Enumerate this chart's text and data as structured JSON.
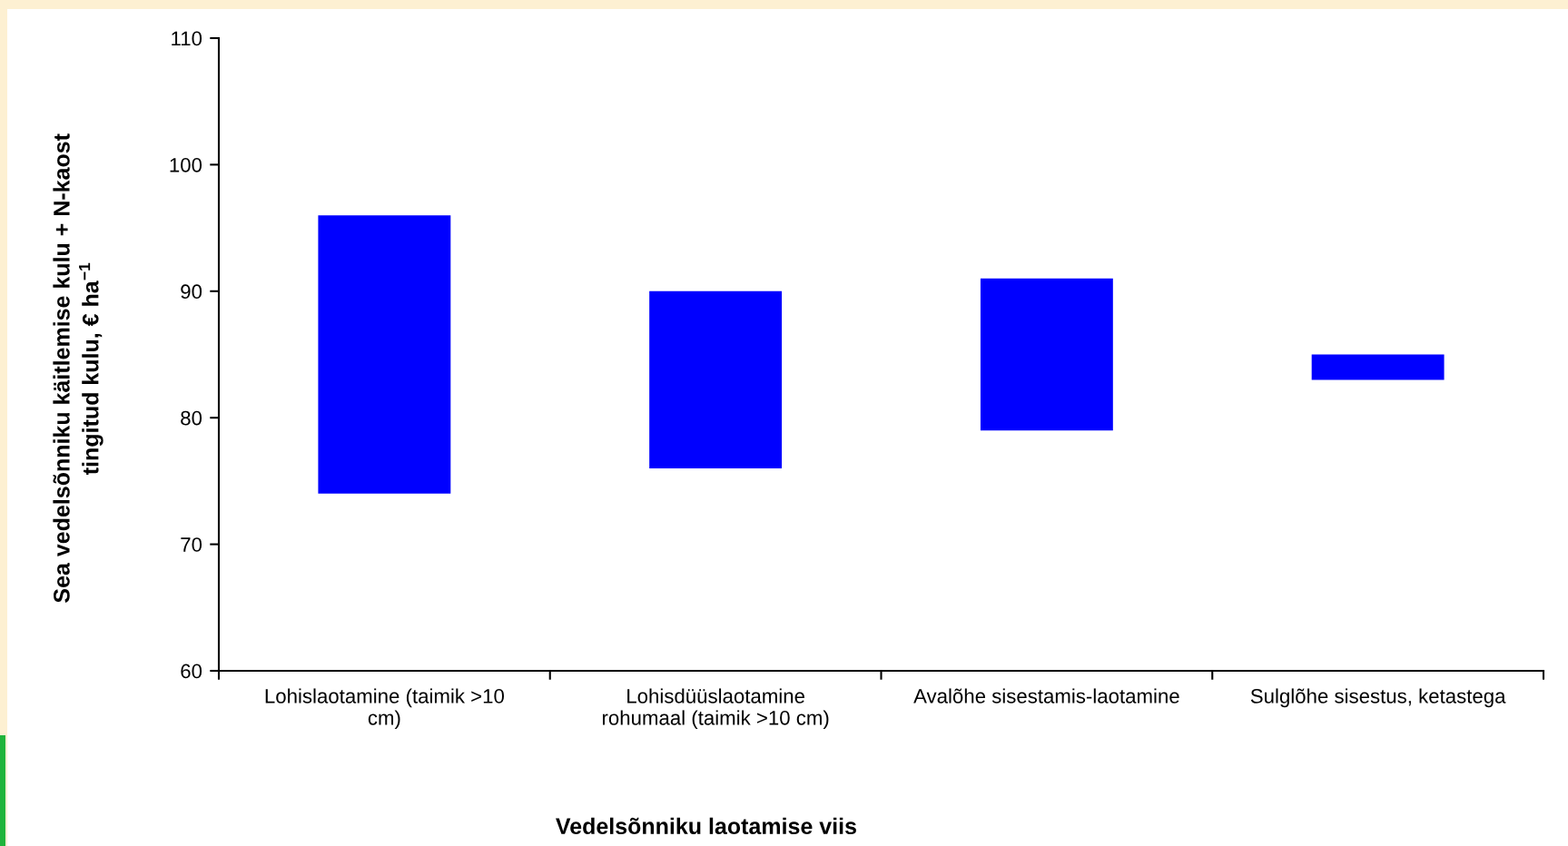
{
  "chart_data": {
    "type": "bar",
    "xlabel": "Vedelsõnniku laotamise viis",
    "ylabel": "Sea vedelsõnniku käitlemise kulu + N-kaost\ntingitud kulu, € ha$^{−1}$",
    "categories": [
      "Lohislaotamine (taimik >10\ncm)",
      "Lohisdüüslaotamine\nrohumaal (taimik >10 cm)",
      "Avalõhe sisestamis-laotamine",
      "Sulglõhe sisestus, ketastega"
    ],
    "base": [
      74,
      76,
      79,
      83
    ],
    "values": [
      22,
      14,
      12,
      2
    ],
    "color": "#0000ff",
    "ylim": [
      60,
      110
    ],
    "yticks": [
      60,
      70,
      80,
      90,
      100,
      110
    ]
  }
}
